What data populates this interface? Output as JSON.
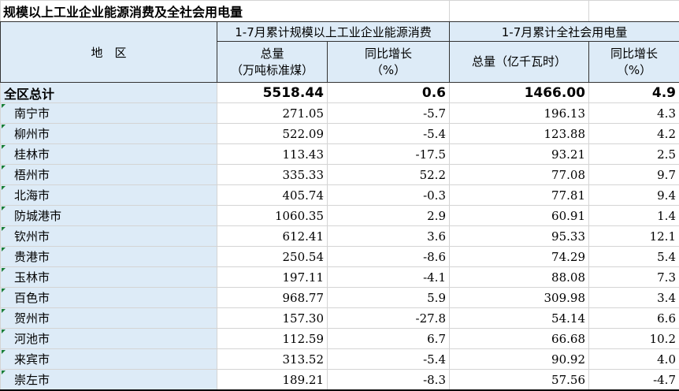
{
  "title": "规模以上工业企业能源消费及全社会用电量",
  "header": {
    "region": "地　区",
    "group1": "1-7月累计规模以上工业企业能源消费",
    "group2": "1-7月累计全社会用电量",
    "g1_total": "总量",
    "g1_total_unit": "（万吨标准煤）",
    "g1_growth": "同比增长",
    "g1_growth_unit": "（%）",
    "g2_total": "总量（亿千瓦时）",
    "g2_growth": "同比增长",
    "g2_growth_unit": "（%）"
  },
  "total": {
    "name": "全区总计",
    "energy": "5518.44",
    "energy_growth": "0.6",
    "power": "1466.00",
    "power_growth": "4.9"
  },
  "rows": [
    {
      "name": "南宁市",
      "energy": "271.05",
      "energy_growth": "-5.7",
      "power": "196.13",
      "power_growth": "4.3"
    },
    {
      "name": "柳州市",
      "energy": "522.09",
      "energy_growth": "-5.4",
      "power": "123.88",
      "power_growth": "4.2"
    },
    {
      "name": "桂林市",
      "energy": "113.43",
      "energy_growth": "-17.5",
      "power": "93.21",
      "power_growth": "2.5"
    },
    {
      "name": "梧州市",
      "energy": "335.33",
      "energy_growth": "52.2",
      "power": "77.08",
      "power_growth": "9.7"
    },
    {
      "name": "北海市",
      "energy": "405.74",
      "energy_growth": "-0.3",
      "power": "77.81",
      "power_growth": "9.4"
    },
    {
      "name": "防城港市",
      "energy": "1060.35",
      "energy_growth": "2.9",
      "power": "60.91",
      "power_growth": "1.4"
    },
    {
      "name": "钦州市",
      "energy": "612.41",
      "energy_growth": "3.6",
      "power": "95.33",
      "power_growth": "12.1"
    },
    {
      "name": "贵港市",
      "energy": "250.54",
      "energy_growth": "-8.6",
      "power": "74.29",
      "power_growth": "5.4"
    },
    {
      "name": "玉林市",
      "energy": "197.11",
      "energy_growth": "-4.1",
      "power": "88.08",
      "power_growth": "7.3"
    },
    {
      "name": "百色市",
      "energy": "968.77",
      "energy_growth": "5.9",
      "power": "309.98",
      "power_growth": "3.4"
    },
    {
      "name": "贺州市",
      "energy": "157.30",
      "energy_growth": "-27.8",
      "power": "54.14",
      "power_growth": "6.6"
    },
    {
      "name": "河池市",
      "energy": "112.59",
      "energy_growth": "6.7",
      "power": "66.68",
      "power_growth": "10.2"
    },
    {
      "name": "来宾市",
      "energy": "313.52",
      "energy_growth": "-5.4",
      "power": "90.92",
      "power_growth": "4.0"
    },
    {
      "name": "崇左市",
      "energy": "189.21",
      "energy_growth": "-8.3",
      "power": "57.56",
      "power_growth": "-4.7"
    }
  ]
}
